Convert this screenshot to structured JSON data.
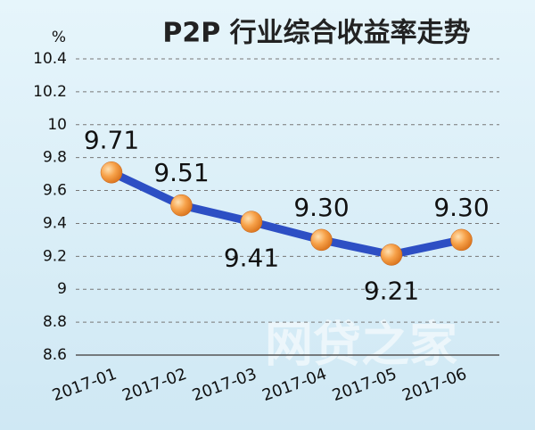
{
  "chart_data": {
    "type": "line",
    "title": "P2P 行业综合收益率走势",
    "y_unit": "%",
    "categories": [
      "2017-01",
      "2017-02",
      "2017-03",
      "2017-04",
      "2017-05",
      "2017-06"
    ],
    "series": [
      {
        "color": "#2d4fc4",
        "values": [
          9.71,
          9.51,
          9.41,
          9.3,
          9.21,
          9.3
        ],
        "value_labels": [
          "9.71",
          "9.51",
          "9.41",
          "9.30",
          "9.21",
          "9.30"
        ]
      }
    ],
    "ylim": [
      8.6,
      10.4
    ],
    "yticks": [
      8.6,
      8.8,
      9,
      9.2,
      9.4,
      9.6,
      9.8,
      10,
      10.2,
      10.4
    ],
    "grid": true,
    "watermark": "网贷之家"
  }
}
